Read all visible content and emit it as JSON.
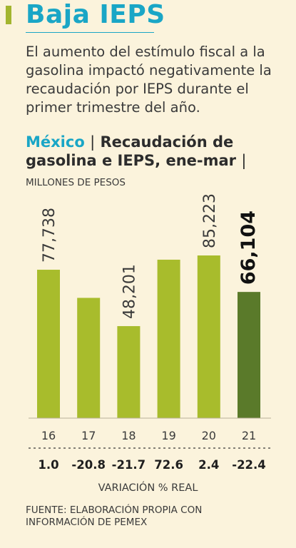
{
  "header": {
    "title": "Baja IEPS",
    "subtitle": "El aumento del estímulo fiscal a la gasolina impactó negativamente la recaudación por IEPS durante el primer trimestre del año."
  },
  "chart_header": {
    "brand": "México",
    "separator": "|",
    "title": "Recaudación de gasolina e IEPS, ene-mar",
    "units": "MILLONES DE PESOS"
  },
  "chart_data": {
    "type": "bar",
    "title": "Recaudación de gasolina e IEPS, ene-mar",
    "ylabel": "MILLONES DE PESOS",
    "categories": [
      "16",
      "17",
      "18",
      "19",
      "20",
      "21"
    ],
    "values": [
      77738,
      63000,
      48201,
      83000,
      85223,
      66104
    ],
    "value_labels": [
      "77,738",
      "",
      "48,201",
      "",
      "85,223",
      "66,104"
    ],
    "variation": [
      "1.0",
      "-20.8",
      "-21.7",
      "72.6",
      "2.4",
      "-22.4"
    ],
    "variation_label": "VARIACIÓN % REAL",
    "ylim": [
      0,
      85223
    ],
    "colors": {
      "bar": "#a8bc2c",
      "highlight": "#5a7a2a"
    },
    "highlight_index": 5
  },
  "footer": {
    "source": "FUENTE: ELABORACIÓN PROPIA CON INFORMACIÓN DE PEMEX"
  }
}
